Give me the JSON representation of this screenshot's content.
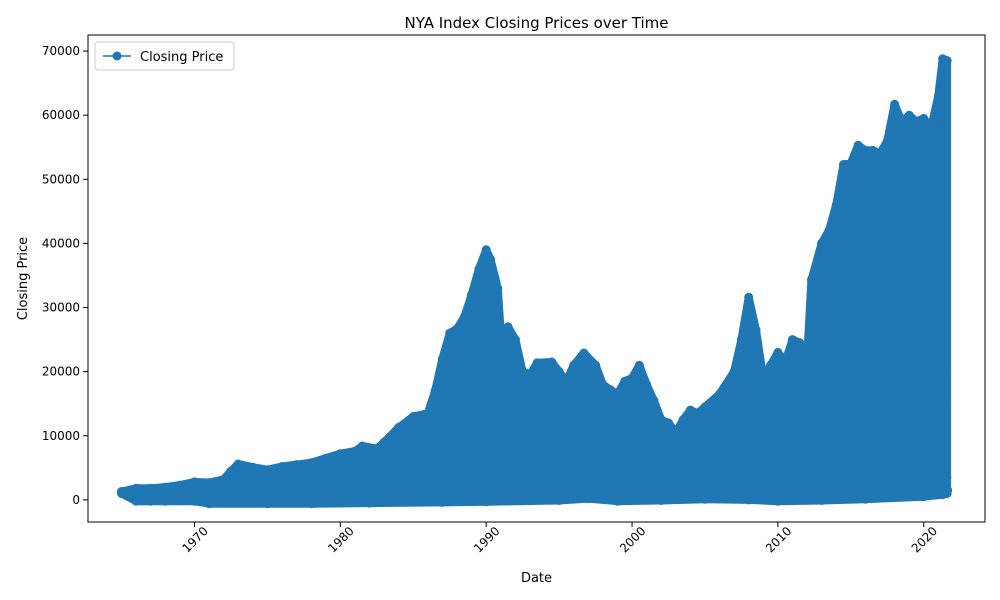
{
  "chart_data": {
    "type": "line",
    "title": "NYA Index Closing Prices over Time",
    "xlabel": "Date",
    "ylabel": "Closing Price",
    "xlim": [
      1962.7,
      2024.2
    ],
    "ylim": [
      -3450,
      72500
    ],
    "x_ticks": [
      1970,
      1980,
      1990,
      2000,
      2010,
      2020
    ],
    "x_tick_labels": [
      "1970",
      "1980",
      "1990",
      "2000",
      "2010",
      "2020"
    ],
    "y_ticks": [
      0,
      10000,
      20000,
      30000,
      40000,
      50000,
      60000,
      70000
    ],
    "y_tick_labels": [
      "0",
      "10000",
      "20000",
      "30000",
      "40000",
      "50000",
      "60000",
      "70000"
    ],
    "grid": false,
    "legend_position": "top-left",
    "color": "#1f77b4",
    "series": [
      {
        "name": "Closing Price",
        "marker": "circle",
        "upper_envelope": [
          [
            1965.0,
            1300
          ],
          [
            1966.0,
            1800
          ],
          [
            1967.0,
            1800
          ],
          [
            1968.0,
            2000
          ],
          [
            1969.0,
            2300
          ],
          [
            1970.0,
            2800
          ],
          [
            1971.0,
            2700
          ],
          [
            1972.0,
            3200
          ],
          [
            1972.5,
            4500
          ],
          [
            1973.0,
            5600
          ],
          [
            1974.0,
            5100
          ],
          [
            1975.0,
            4700
          ],
          [
            1976.0,
            5200
          ],
          [
            1977.0,
            5500
          ],
          [
            1978.0,
            5800
          ],
          [
            1979.0,
            6500
          ],
          [
            1980.0,
            7200
          ],
          [
            1981.0,
            7600
          ],
          [
            1981.5,
            8400
          ],
          [
            1982.5,
            8000
          ],
          [
            1983.0,
            9000
          ],
          [
            1984.0,
            11300
          ],
          [
            1985.0,
            13000
          ],
          [
            1986.0,
            13500
          ],
          [
            1986.5,
            17000
          ],
          [
            1987.0,
            22000
          ],
          [
            1987.5,
            26000
          ],
          [
            1988.0,
            26700
          ],
          [
            1988.5,
            28500
          ],
          [
            1989.0,
            32000
          ],
          [
            1989.5,
            36000
          ],
          [
            1990.0,
            39000
          ],
          [
            1990.3,
            37500
          ],
          [
            1990.8,
            33000
          ],
          [
            1991.0,
            26000
          ],
          [
            1991.5,
            27000
          ],
          [
            1992.0,
            25000
          ],
          [
            1992.5,
            20000
          ],
          [
            1993.0,
            19500
          ],
          [
            1993.5,
            21400
          ],
          [
            1994.5,
            21500
          ],
          [
            1995.0,
            20000
          ],
          [
            1995.5,
            18500
          ],
          [
            1996.0,
            21000
          ],
          [
            1996.7,
            22900
          ],
          [
            1997.5,
            21000
          ],
          [
            1998.0,
            18000
          ],
          [
            1998.5,
            17200
          ],
          [
            1999.0,
            16500
          ],
          [
            1999.5,
            18500
          ],
          [
            2000.0,
            19000
          ],
          [
            2000.5,
            21000
          ],
          [
            2001.0,
            18000
          ],
          [
            2001.5,
            15500
          ],
          [
            2002.0,
            12500
          ],
          [
            2002.5,
            12000
          ],
          [
            2003.0,
            10500
          ],
          [
            2003.5,
            12500
          ],
          [
            2004.0,
            14000
          ],
          [
            2004.5,
            13500
          ],
          [
            2005.0,
            14500
          ],
          [
            2006.0,
            16500
          ],
          [
            2007.0,
            20000
          ],
          [
            2007.5,
            25000
          ],
          [
            2008.0,
            31600
          ],
          [
            2008.5,
            26500
          ],
          [
            2009.0,
            19000
          ],
          [
            2009.5,
            21000
          ],
          [
            2010.0,
            23000
          ],
          [
            2010.5,
            21500
          ],
          [
            2011.0,
            25000
          ],
          [
            2011.5,
            24500
          ],
          [
            2012.0,
            22000
          ],
          [
            2012.3,
            34300
          ],
          [
            2013.0,
            40000
          ],
          [
            2013.5,
            42000
          ],
          [
            2014.0,
            46000
          ],
          [
            2014.5,
            52300
          ],
          [
            2015.0,
            52500
          ],
          [
            2015.5,
            55300
          ],
          [
            2016.0,
            54500
          ],
          [
            2016.5,
            54500
          ],
          [
            2017.0,
            54000
          ],
          [
            2017.5,
            56000
          ],
          [
            2018.0,
            61700
          ],
          [
            2018.5,
            59000
          ],
          [
            2019.0,
            60000
          ],
          [
            2019.5,
            59000
          ],
          [
            2020.0,
            59500
          ],
          [
            2020.5,
            58000
          ],
          [
            2021.0,
            63000
          ],
          [
            2021.3,
            68800
          ],
          [
            2021.6,
            68500
          ]
        ],
        "lower_envelope": [
          [
            1965.0,
            1000
          ],
          [
            1966.0,
            -200
          ],
          [
            1967.0,
            -200
          ],
          [
            1968.0,
            -200
          ],
          [
            1970.0,
            -200
          ],
          [
            1971.0,
            -600
          ],
          [
            1975.0,
            -600
          ],
          [
            1978.0,
            -600
          ],
          [
            1982.0,
            -500
          ],
          [
            1987.0,
            -400
          ],
          [
            1990.0,
            -300
          ],
          [
            1995.0,
            -100
          ],
          [
            1997.0,
            200
          ],
          [
            1999.0,
            -200
          ],
          [
            2002.0,
            -100
          ],
          [
            2005.0,
            100
          ],
          [
            2008.0,
            0
          ],
          [
            2010.0,
            -200
          ],
          [
            2013.0,
            -100
          ],
          [
            2016.0,
            100
          ],
          [
            2020.0,
            500
          ],
          [
            2021.3,
            800
          ],
          [
            2021.6,
            1000
          ]
        ],
        "tail_points": [
          [
            2021.45,
            28500
          ],
          [
            2021.5,
            20000
          ],
          [
            2021.5,
            15000
          ],
          [
            2021.5,
            11500
          ],
          [
            2021.55,
            3500
          ],
          [
            2021.6,
            1500
          ]
        ]
      }
    ]
  }
}
